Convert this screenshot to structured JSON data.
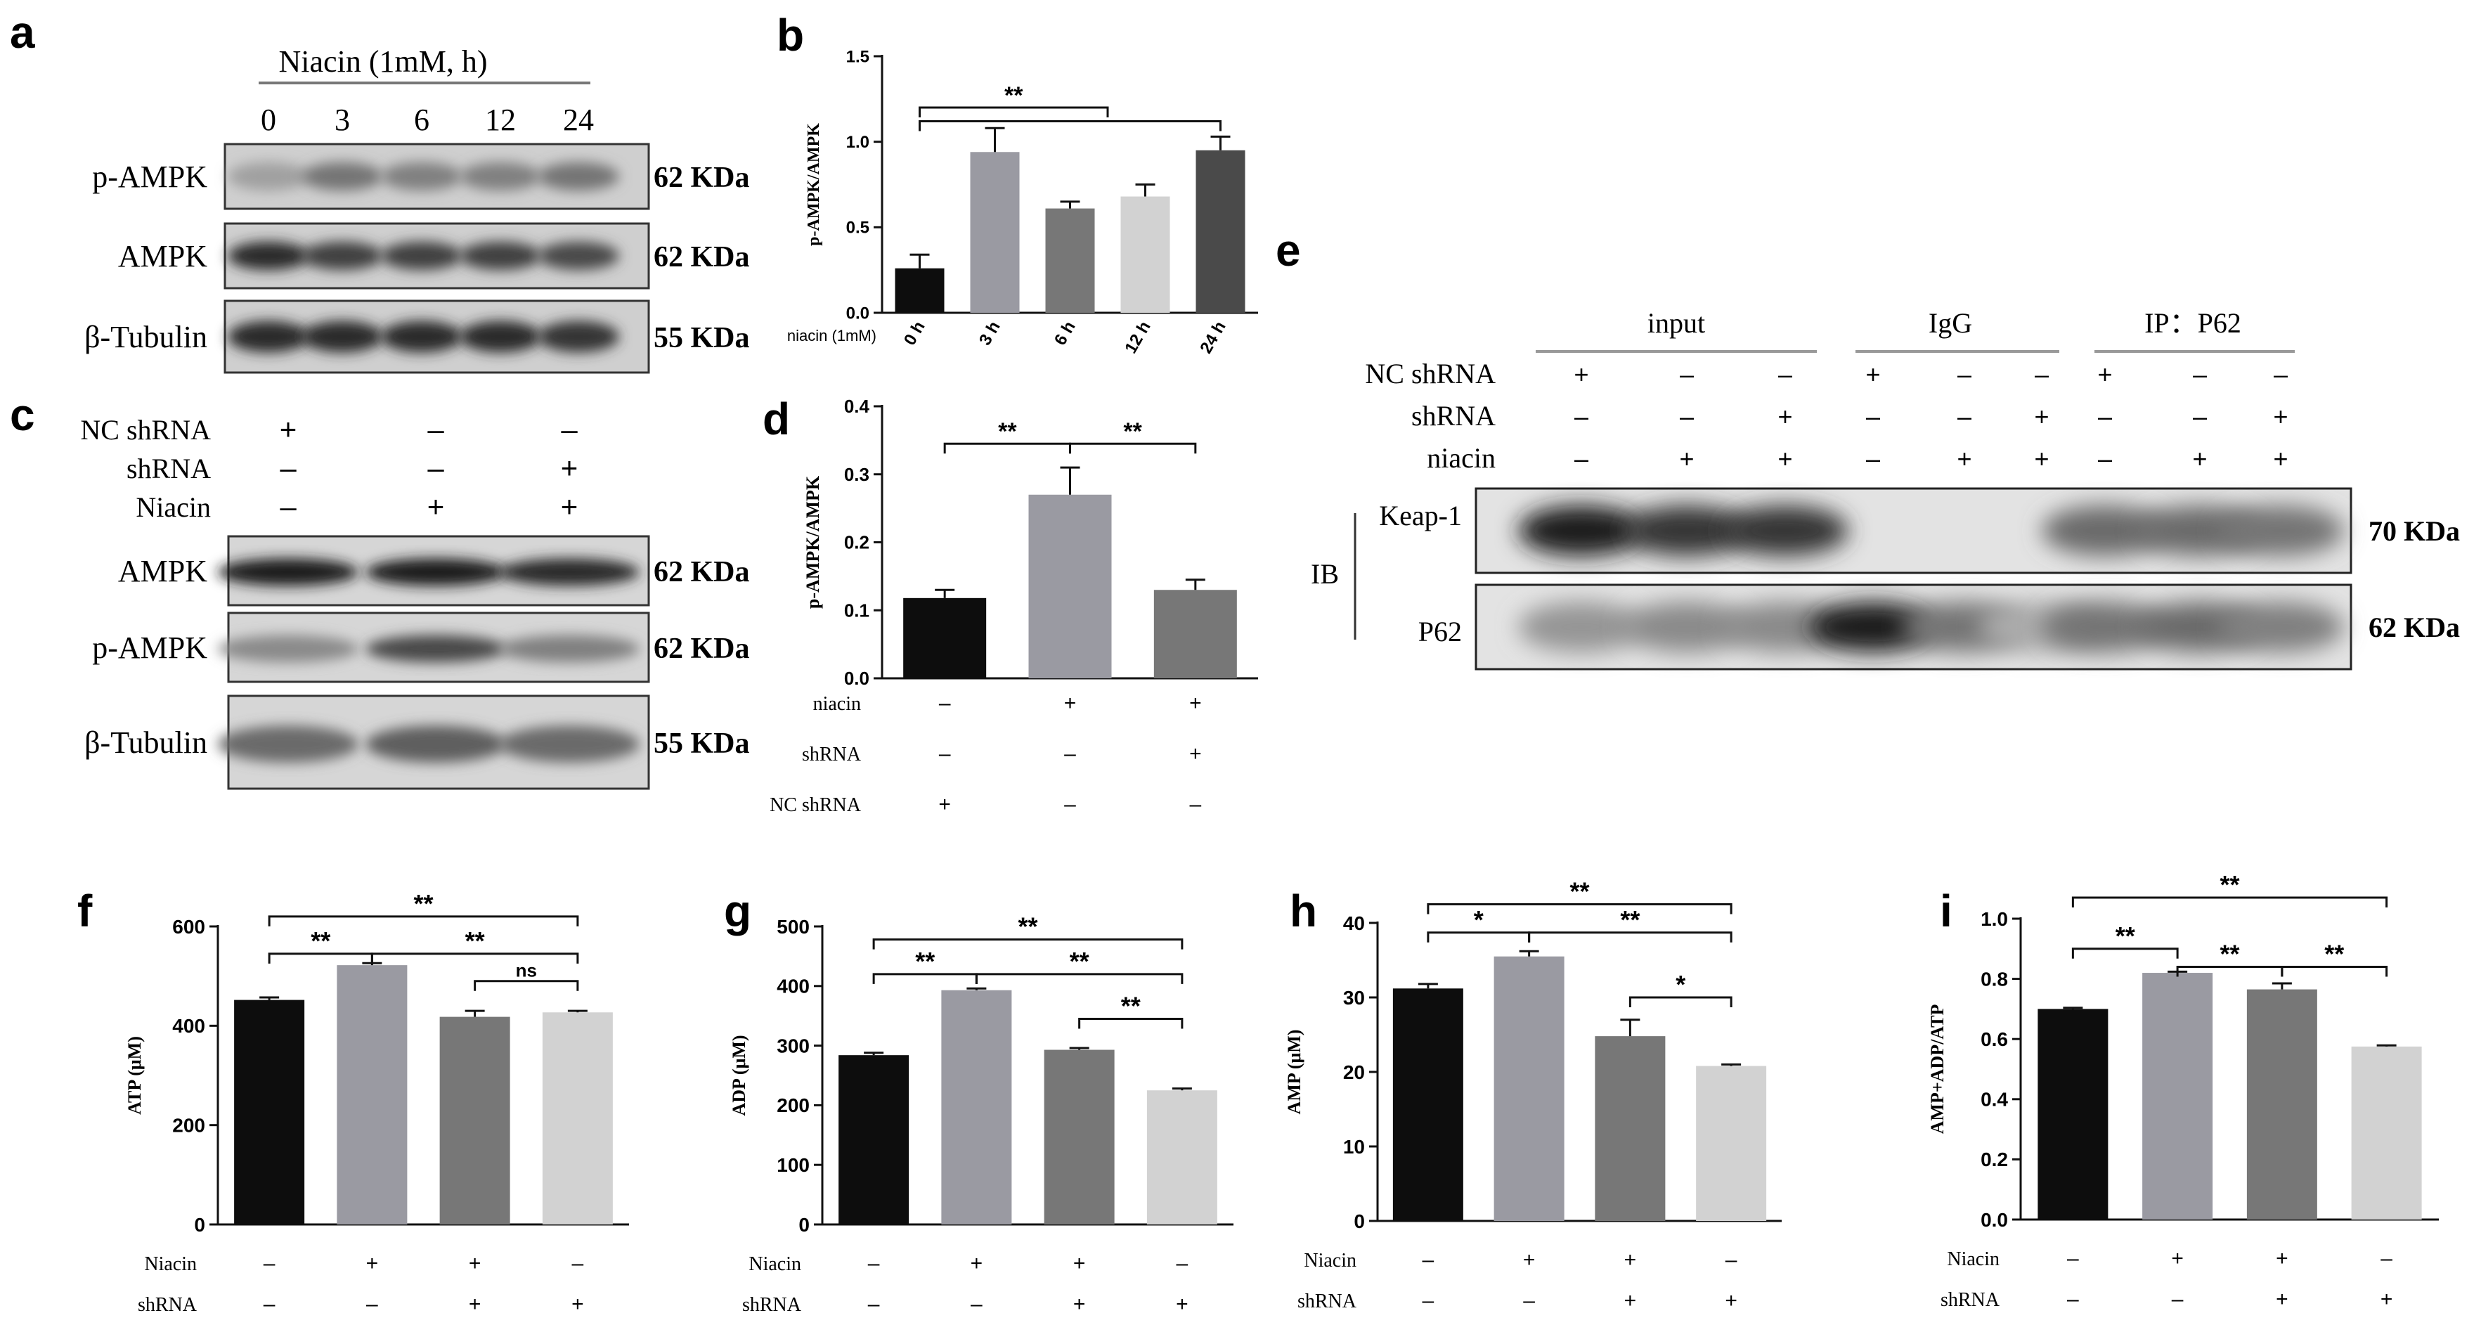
{
  "panels": {
    "a": {
      "letter": "a",
      "header": "Niacin (1mM, h)",
      "timepoints": [
        "0",
        "3",
        "6",
        "12",
        "24"
      ],
      "rows": [
        {
          "label": "p-AMPK",
          "kda": "62 KDa",
          "band_intensity": [
            0.35,
            0.55,
            0.5,
            0.5,
            0.55
          ]
        },
        {
          "label": "AMPK",
          "kda": "62 KDa",
          "band_intensity": [
            0.9,
            0.8,
            0.8,
            0.8,
            0.75
          ]
        },
        {
          "label": "β-Tubulin",
          "kda": "55 KDa",
          "band_intensity": [
            0.9,
            0.9,
            0.9,
            0.9,
            0.85
          ]
        }
      ]
    },
    "c": {
      "letter": "c",
      "conditions": [
        {
          "label": "NC shRNA",
          "signs": [
            "+",
            "-",
            "-"
          ]
        },
        {
          "label": "shRNA",
          "signs": [
            "-",
            "-",
            "+"
          ]
        },
        {
          "label": "Niacin",
          "signs": [
            "-",
            "+",
            "+"
          ]
        }
      ],
      "rows": [
        {
          "label": "AMPK",
          "kda": "62 KDa",
          "band_intensity": [
            0.95,
            0.95,
            0.9
          ]
        },
        {
          "label": "p-AMPK",
          "kda": "62 KDa",
          "band_intensity": [
            0.45,
            0.75,
            0.5
          ]
        },
        {
          "label": "β-Tubulin",
          "kda": "55 KDa",
          "band_intensity": [
            0.6,
            0.65,
            0.6
          ]
        }
      ]
    },
    "e": {
      "letter": "e",
      "groups": [
        "input",
        "IgG",
        "IP：P62"
      ],
      "conditions": [
        {
          "label": "NC shRNA",
          "signs": [
            "+",
            "-",
            "-",
            "+",
            "-",
            "-",
            "+",
            "-",
            "-"
          ]
        },
        {
          "label": "shRNA",
          "signs": [
            "-",
            "-",
            "+",
            "-",
            "-",
            "+",
            "-",
            "-",
            "+"
          ]
        },
        {
          "label": "niacin",
          "signs": [
            "-",
            "+",
            "+",
            "-",
            "+",
            "+",
            "-",
            "+",
            "+"
          ]
        }
      ],
      "ib_label": "IB",
      "rows": [
        {
          "label": "Keap-1",
          "kda": "70 KDa"
        },
        {
          "label": "P62",
          "kda": "62 KDa"
        }
      ]
    }
  },
  "chart_data": [
    {
      "id": "b",
      "letter": "b",
      "type": "bar",
      "categories": [
        "0 h",
        "3 h",
        "6 h",
        "12 h",
        "24 h"
      ],
      "values": [
        0.26,
        0.94,
        0.61,
        0.68,
        0.95
      ],
      "errors": [
        0.08,
        0.14,
        0.04,
        0.07,
        0.08
      ],
      "colors": [
        "#0d0d0d",
        "#9a9aa2",
        "#777777",
        "#d2d2d2",
        "#4a4a4a"
      ],
      "ylabel": "p-AMPK/AMPK",
      "ylim": [
        0,
        1.5
      ],
      "yticks": [
        "0.0",
        "0.5",
        "1.0",
        "1.5"
      ],
      "x_prefix": "niacin (1mM)",
      "rotated_x": true,
      "brackets": [
        {
          "from": 0,
          "to": 2.5,
          "level": 1.2,
          "label": "**"
        },
        {
          "from": 0,
          "to": 4,
          "level": 1.12,
          "label": ""
        }
      ]
    },
    {
      "id": "d",
      "letter": "d",
      "type": "bar",
      "categories": [
        "",
        "",
        ""
      ],
      "values": [
        0.118,
        0.27,
        0.13
      ],
      "errors": [
        0.012,
        0.04,
        0.015
      ],
      "colors": [
        "#0d0d0d",
        "#9a9aa2",
        "#777777"
      ],
      "ylabel": "p-AMPK/AMPK",
      "ylim": [
        0,
        0.4
      ],
      "yticks": [
        "0.0",
        "0.1",
        "0.2",
        "0.3",
        "0.4"
      ],
      "conditions": [
        {
          "label": "niacin",
          "signs": [
            "-",
            "+",
            "+"
          ]
        },
        {
          "label": "shRNA",
          "signs": [
            "-",
            "-",
            "+"
          ]
        },
        {
          "label": "NC shRNA",
          "signs": [
            "+",
            "-",
            "-"
          ]
        }
      ],
      "brackets": [
        {
          "from": 0,
          "to": 1,
          "level": 0.345,
          "label": "**"
        },
        {
          "from": 1,
          "to": 2,
          "level": 0.345,
          "label": "**"
        }
      ]
    },
    {
      "id": "f",
      "letter": "f",
      "type": "bar",
      "categories": [
        "",
        "",
        "",
        ""
      ],
      "values": [
        452,
        522,
        418,
        427
      ],
      "errors": [
        5,
        4,
        12,
        3
      ],
      "colors": [
        "#0d0d0d",
        "#9a9aa2",
        "#777777",
        "#d2d2d2"
      ],
      "ylabel": "ATP (μM)",
      "ylim": [
        0,
        600
      ],
      "yticks": [
        "0",
        "200",
        "400",
        "600"
      ],
      "conditions": [
        {
          "label": "Niacin",
          "signs": [
            "-",
            "+",
            "+",
            "-"
          ]
        },
        {
          "label": "shRNA",
          "signs": [
            "-",
            "-",
            "+",
            "+"
          ]
        }
      ],
      "brackets": [
        {
          "from": 0,
          "to": 1,
          "level": 545,
          "label": "**"
        },
        {
          "from": 1,
          "to": 3,
          "level": 545,
          "label": "**"
        },
        {
          "from": 0,
          "to": 3,
          "level": 620,
          "label": "**"
        },
        {
          "from": 2,
          "to": 3,
          "level": 490,
          "label": "ns"
        }
      ]
    },
    {
      "id": "g",
      "letter": "g",
      "type": "bar",
      "categories": [
        "",
        "",
        "",
        ""
      ],
      "values": [
        284,
        393,
        293,
        225
      ],
      "errors": [
        4,
        3,
        3,
        3
      ],
      "colors": [
        "#0d0d0d",
        "#9a9aa2",
        "#777777",
        "#d2d2d2"
      ],
      "ylabel": "ADP (μM)",
      "ylim": [
        0,
        500
      ],
      "yticks": [
        "0",
        "100",
        "200",
        "300",
        "400",
        "500"
      ],
      "conditions": [
        {
          "label": "Niacin",
          "signs": [
            "-",
            "+",
            "+",
            "-"
          ]
        },
        {
          "label": "shRNA",
          "signs": [
            "-",
            "-",
            "+",
            "+"
          ]
        }
      ],
      "brackets": [
        {
          "from": 0,
          "to": 3,
          "level": 478,
          "label": "**"
        },
        {
          "from": 0,
          "to": 1,
          "level": 420,
          "label": "**"
        },
        {
          "from": 1,
          "to": 3,
          "level": 420,
          "label": "**"
        },
        {
          "from": 2,
          "to": 3,
          "level": 345,
          "label": "**"
        }
      ]
    },
    {
      "id": "h",
      "letter": "h",
      "type": "bar",
      "categories": [
        "",
        "",
        "",
        ""
      ],
      "values": [
        31.2,
        35.5,
        24.8,
        20.8
      ],
      "errors": [
        0.6,
        0.7,
        2.2,
        0.2
      ],
      "colors": [
        "#0d0d0d",
        "#9a9aa2",
        "#777777",
        "#d2d2d2"
      ],
      "ylabel": "AMP (μM)",
      "ylim": [
        0,
        40
      ],
      "yticks": [
        "0",
        "10",
        "20",
        "30",
        "40"
      ],
      "conditions": [
        {
          "label": "Niacin",
          "signs": [
            "-",
            "+",
            "+",
            "-"
          ]
        },
        {
          "label": "shRNA",
          "signs": [
            "-",
            "-",
            "+",
            "+"
          ]
        }
      ],
      "brackets": [
        {
          "from": 0,
          "to": 3,
          "level": 42.5,
          "label": "**"
        },
        {
          "from": 0,
          "to": 1,
          "level": 38.7,
          "label": "*"
        },
        {
          "from": 1,
          "to": 3,
          "level": 38.7,
          "label": "**"
        },
        {
          "from": 2,
          "to": 3,
          "level": 30,
          "label": "*"
        }
      ]
    },
    {
      "id": "i",
      "letter": "i",
      "type": "bar",
      "categories": [
        "",
        "",
        "",
        ""
      ],
      "values": [
        0.7,
        0.82,
        0.765,
        0.575
      ],
      "errors": [
        0.004,
        0.004,
        0.02,
        0.004
      ],
      "colors": [
        "#0d0d0d",
        "#9a9aa2",
        "#777777",
        "#d2d2d2"
      ],
      "ylabel": "AMP+ADP/ATP",
      "ylim": [
        0,
        1.0
      ],
      "yticks": [
        "0.0",
        "0.2",
        "0.4",
        "0.6",
        "0.8",
        "1.0"
      ],
      "conditions": [
        {
          "label": "Niacin",
          "signs": [
            "-",
            "+",
            "+",
            "-"
          ]
        },
        {
          "label": "shRNA",
          "signs": [
            "-",
            "-",
            "+",
            "+"
          ]
        }
      ],
      "brackets": [
        {
          "from": 0,
          "to": 3,
          "level": 1.07,
          "label": "**"
        },
        {
          "from": 0,
          "to": 1,
          "level": 0.9,
          "label": "**"
        },
        {
          "from": 1,
          "to": 2,
          "level": 0.84,
          "label": "**"
        },
        {
          "from": 2,
          "to": 3,
          "level": 0.84,
          "label": "**"
        }
      ]
    }
  ]
}
